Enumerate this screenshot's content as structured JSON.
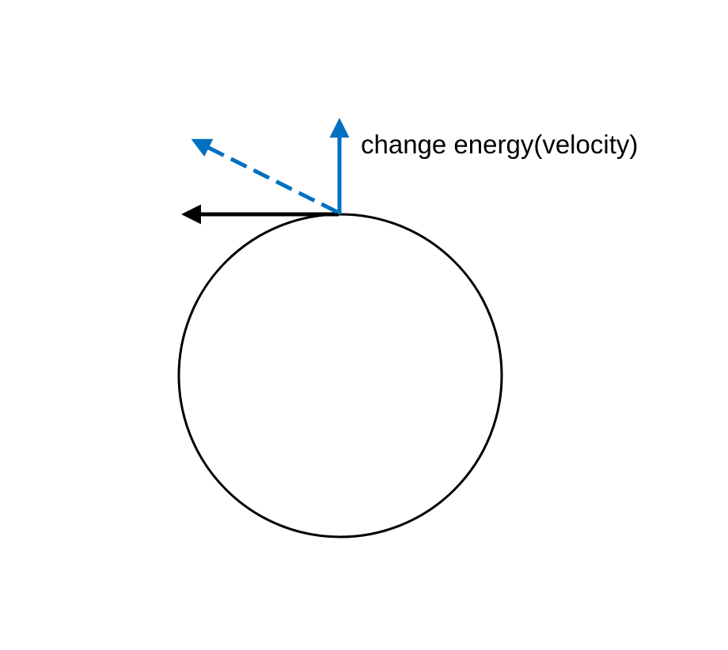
{
  "diagram": {
    "labels": {
      "change_energy": "change energy(velocity)"
    },
    "colors": {
      "orbit": "#000000",
      "velocity_arrow": "#000000",
      "change_arrow": "#0070c0",
      "result_arrow": "#0070c0",
      "background": "#ffffff"
    },
    "elements": {
      "orbit": "circle",
      "velocity_arrow": "solid black arrow pointing left",
      "change_arrow": "solid blue arrow pointing up",
      "result_arrow": "dashed blue arrow pointing up-left"
    }
  }
}
